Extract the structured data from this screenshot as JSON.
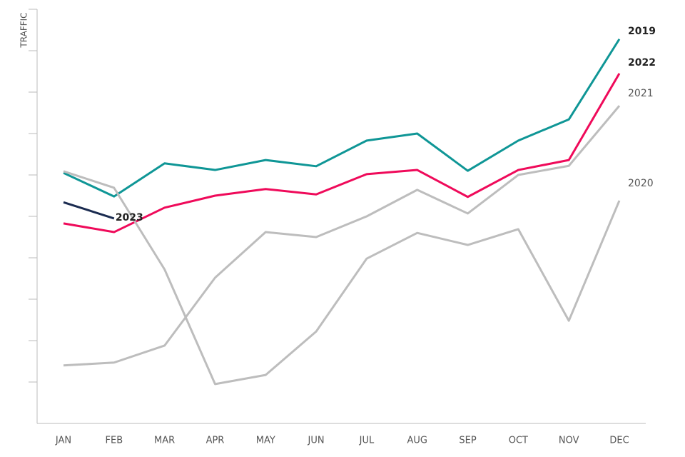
{
  "chart_data": {
    "type": "line",
    "y_label": "TRAFFIC",
    "categories": [
      "JAN",
      "FEB",
      "MAR",
      "APR",
      "MAY",
      "JUN",
      "JUL",
      "AUG",
      "SEP",
      "OCT",
      "NOV",
      "DEC"
    ],
    "ylim": [
      0,
      10
    ],
    "yticks": [
      1,
      2,
      3,
      4,
      5,
      6,
      7,
      8,
      9,
      10
    ],
    "grid": false,
    "series": [
      {
        "name": "2019",
        "color": "#0f9696",
        "label_bold": true,
        "values": [
          6.05,
          5.48,
          6.28,
          6.12,
          6.36,
          6.21,
          6.83,
          7.0,
          6.1,
          6.83,
          7.34,
          9.28
        ]
      },
      {
        "name": "2022",
        "color": "#ef0a5a",
        "label_bold": true,
        "values": [
          4.83,
          4.62,
          5.21,
          5.5,
          5.66,
          5.53,
          6.02,
          6.12,
          5.47,
          6.12,
          6.36,
          8.45
        ]
      },
      {
        "name": "2021",
        "color": "#bdbdbd",
        "label_bold": false,
        "values": [
          1.4,
          1.47,
          1.88,
          3.52,
          4.62,
          4.5,
          5.0,
          5.64,
          5.07,
          6.0,
          6.22,
          7.67
        ]
      },
      {
        "name": "2020",
        "color": "#bdbdbd",
        "label_bold": false,
        "values": [
          6.09,
          5.69,
          3.72,
          0.95,
          1.17,
          2.22,
          3.98,
          4.6,
          4.31,
          4.69,
          2.48,
          5.38
        ]
      },
      {
        "name": "2023",
        "color": "#1a2b50",
        "label_bold": true,
        "values": [
          5.34,
          4.95,
          null,
          null,
          null,
          null,
          null,
          null,
          null,
          null,
          null,
          null
        ]
      }
    ]
  }
}
